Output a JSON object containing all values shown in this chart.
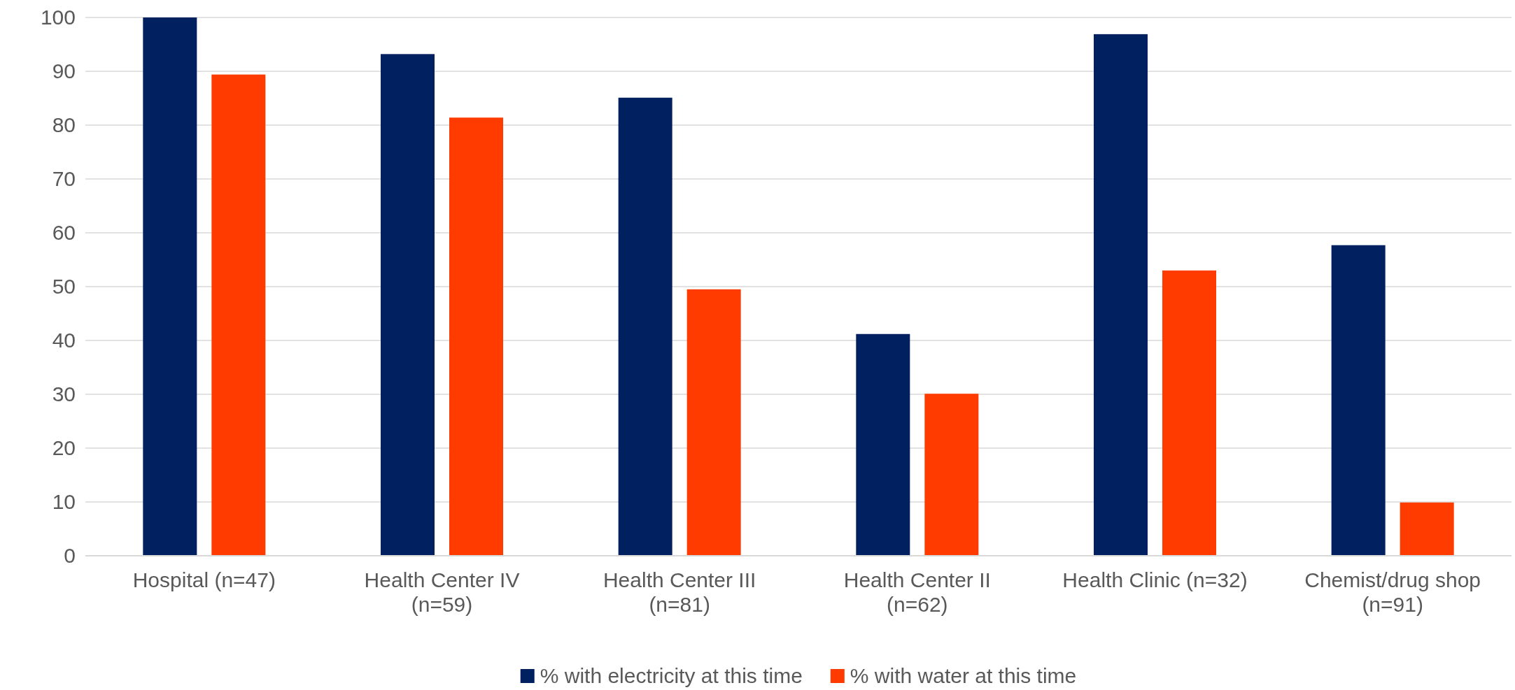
{
  "chart_data": {
    "type": "bar",
    "categories": [
      "Hospital (n=47)",
      "Health Center IV (n=59)",
      "Health Center III (n=81)",
      "Health Center II (n=62)",
      "Health Clinic (n=32)",
      "Chemist/drug shop (n=91)"
    ],
    "series": [
      {
        "name": "% with electricity at this time",
        "color": "#002060",
        "values": [
          100,
          93.2,
          85.1,
          41.2,
          96.9,
          57.7
        ]
      },
      {
        "name": "% with water at this time",
        "color": "#ff3b00",
        "values": [
          89.4,
          81.4,
          49.5,
          30.1,
          53.0,
          9.9
        ]
      }
    ],
    "ylim": [
      0,
      100
    ],
    "yticks": [
      0,
      10,
      20,
      30,
      40,
      50,
      60,
      70,
      80,
      90,
      100
    ],
    "grid": "y",
    "legend": "bottom"
  }
}
